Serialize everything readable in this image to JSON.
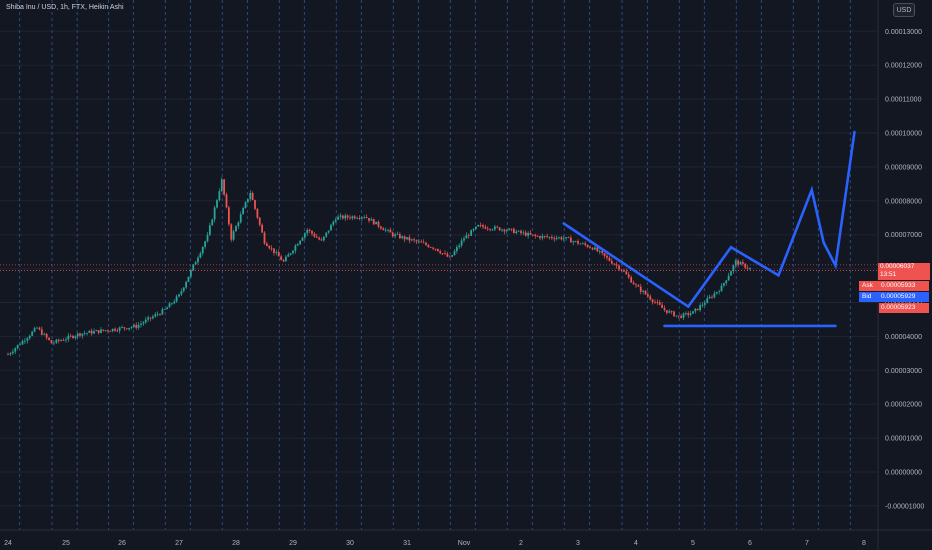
{
  "header": {
    "symbol_legend": "Shiba Inu / USD, 1h, FTX, Heikin Ashi",
    "currency_label": "USD"
  },
  "price_scale": {
    "labels": [
      "0.00013000",
      "0.00012000",
      "0.00011000",
      "0.00010000",
      "0.00009000",
      "0.00008000",
      "0.00007000",
      "0.00006000",
      "0.00005000",
      "0.00004000",
      "0.00003000",
      "0.00002000",
      "0.00001000",
      "0.00000000",
      "-0.00001000"
    ],
    "last_price": "0.00006037",
    "countdown": "13:51",
    "ask_label": "Ask",
    "ask_price": "0.00005933",
    "bid_label": "Bid",
    "bid_price": "0.00005929",
    "low_price": "0.00005923"
  },
  "time_scale": {
    "labels": [
      "24",
      "25",
      "26",
      "27",
      "28",
      "29",
      "30",
      "31",
      "Nov",
      "2",
      "3",
      "4",
      "5",
      "6",
      "7",
      "8"
    ]
  },
  "colors": {
    "background": "#131722",
    "up_candle": "#26a69a",
    "down_candle": "#ef5350",
    "drawing": "#2962ff",
    "ask_badge": "#ef5350",
    "bid_badge": "#2962ff",
    "price_line": "#ef5350"
  },
  "chart_data": {
    "type": "candlestick",
    "symbol": "Shiba Inu / USD",
    "interval": "1h",
    "exchange": "FTX",
    "style": "Heikin Ashi",
    "ylim": [
      -1.05e-05,
      1.35e-05
    ],
    "x_range_days": [
      "Oct 24",
      "Nov 8"
    ],
    "price_path": [
      {
        "t": "Oct 24 00:00",
        "close": 3.47e-05
      },
      {
        "t": "Oct 24 12:00",
        "close": 4.25e-05
      },
      {
        "t": "Oct 24 18:00",
        "close": 3.8e-05
      },
      {
        "t": "Oct 25 06:00",
        "close": 4.08e-05
      },
      {
        "t": "Oct 26 06:00",
        "close": 4.3e-05
      },
      {
        "t": "Oct 26 18:00",
        "close": 4.78e-05
      },
      {
        "t": "Oct 27 00:00",
        "close": 5.2e-05
      },
      {
        "t": "Oct 27 12:00",
        "close": 6.95e-05
      },
      {
        "t": "Oct 27 18:00",
        "close": 8.6e-05
      },
      {
        "t": "Oct 27 22:00",
        "close": 6.9e-05
      },
      {
        "t": "Oct 28 06:00",
        "close": 8.25e-05
      },
      {
        "t": "Oct 28 12:00",
        "close": 6.8e-05
      },
      {
        "t": "Oct 28 20:00",
        "close": 6.2e-05
      },
      {
        "t": "Oct 29 06:00",
        "close": 7.15e-05
      },
      {
        "t": "Oct 29 12:00",
        "close": 6.8e-05
      },
      {
        "t": "Oct 29 18:00",
        "close": 7.5e-05
      },
      {
        "t": "Oct 30 06:00",
        "close": 7.55e-05
      },
      {
        "t": "Oct 30 18:00",
        "close": 7e-05
      },
      {
        "t": "Oct 31 06:00",
        "close": 6.75e-05
      },
      {
        "t": "Oct 31 12:00",
        "close": 6.6e-05
      },
      {
        "t": "Oct 31 18:00",
        "close": 6.3e-05
      },
      {
        "t": "Nov 1 00:00",
        "close": 6.9e-05
      },
      {
        "t": "Nov 1 06:00",
        "close": 7.25e-05
      },
      {
        "t": "Nov 1 18:00",
        "close": 7.15e-05
      },
      {
        "t": "Nov 2 06:00",
        "close": 6.95e-05
      },
      {
        "t": "Nov 2 18:00",
        "close": 6.9e-05
      },
      {
        "t": "Nov 3 06:00",
        "close": 6.62e-05
      },
      {
        "t": "Nov 3 18:00",
        "close": 5.98e-05
      },
      {
        "t": "Nov 4 00:00",
        "close": 5.48e-05
      },
      {
        "t": "Nov 4 12:00",
        "close": 4.78e-05
      },
      {
        "t": "Nov 4 18:00",
        "close": 4.58e-05
      },
      {
        "t": "Nov 5 00:00",
        "close": 4.7e-05
      },
      {
        "t": "Nov 5 12:00",
        "close": 5.45e-05
      },
      {
        "t": "Nov 5 18:00",
        "close": 6.2e-05
      },
      {
        "t": "Nov 6 00:00",
        "close": 6e-05
      }
    ],
    "drawings": [
      {
        "type": "trendline",
        "points": [
          [
            "Nov 2 18:00",
            7.33e-05
          ],
          [
            "Nov 4 22:00",
            4.88e-05
          ]
        ]
      },
      {
        "type": "path",
        "points": [
          [
            "Nov 4 22:00",
            4.88e-05
          ],
          [
            "Nov 5 16:00",
            6.63e-05
          ],
          [
            "Nov 6 12:00",
            5.8e-05
          ],
          [
            "Nov 7 02:00",
            8.32e-05
          ],
          [
            "Nov 7 07:00",
            6.77e-05
          ],
          [
            "Nov 7 12:00",
            6.09e-05
          ],
          [
            "Nov 7 20:00",
            0.0001003
          ]
        ]
      },
      {
        "type": "horizontal",
        "points": [
          [
            "Nov 4 12:00",
            4.31e-05
          ],
          [
            "Nov 7 12:00",
            4.31e-05
          ]
        ]
      }
    ]
  }
}
